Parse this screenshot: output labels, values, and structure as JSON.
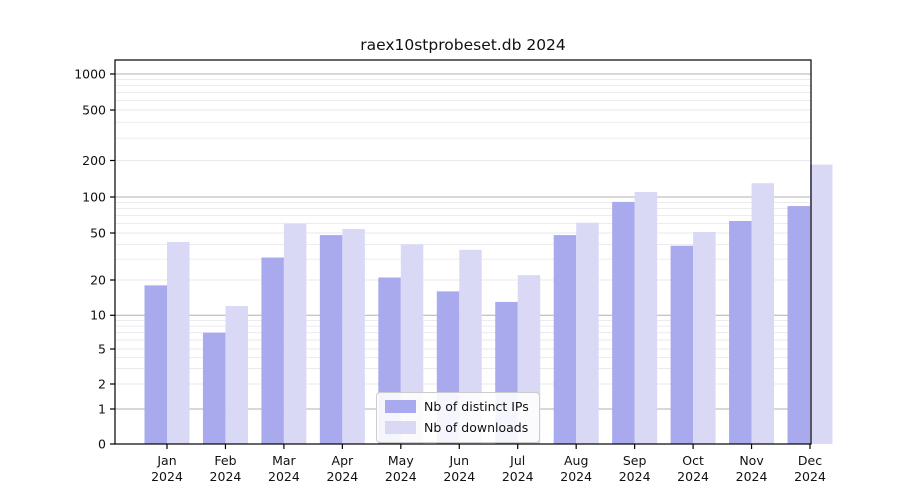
{
  "window": {
    "background": "#ffffff"
  },
  "chart_data": {
    "type": "bar",
    "title": "raex10stprobeset.db 2024",
    "categories": [
      "Jan",
      "Feb",
      "Mar",
      "Apr",
      "May",
      "Jun",
      "Jul",
      "Aug",
      "Sep",
      "Oct",
      "Nov",
      "Dec"
    ],
    "x_tick_year": "2024",
    "series": [
      {
        "name": "Nb of distinct IPs",
        "color": "#a9a9ee",
        "values": [
          18,
          7,
          31,
          48,
          21,
          16,
          13,
          48,
          91,
          39,
          63,
          84
        ]
      },
      {
        "name": "Nb of downloads",
        "color": "#d9d9f6",
        "values": [
          42,
          12,
          60,
          54,
          40,
          36,
          22,
          61,
          110,
          51,
          130,
          185
        ]
      }
    ],
    "xlabel": "",
    "ylabel": "",
    "yscale": "symlog",
    "y_ticks": [
      0,
      1,
      2,
      5,
      10,
      20,
      50,
      100,
      200,
      500,
      1000
    ],
    "ylim": [
      0,
      1300
    ],
    "grid": "major-and-minor-horizontal",
    "legend_position": "lower-center"
  },
  "colors": {
    "axis": "#000000",
    "tick_text": "#111111",
    "grid_major": "#b0b0b0",
    "grid_minor": "#e9e9ee",
    "legend_border": "#cccccc"
  }
}
